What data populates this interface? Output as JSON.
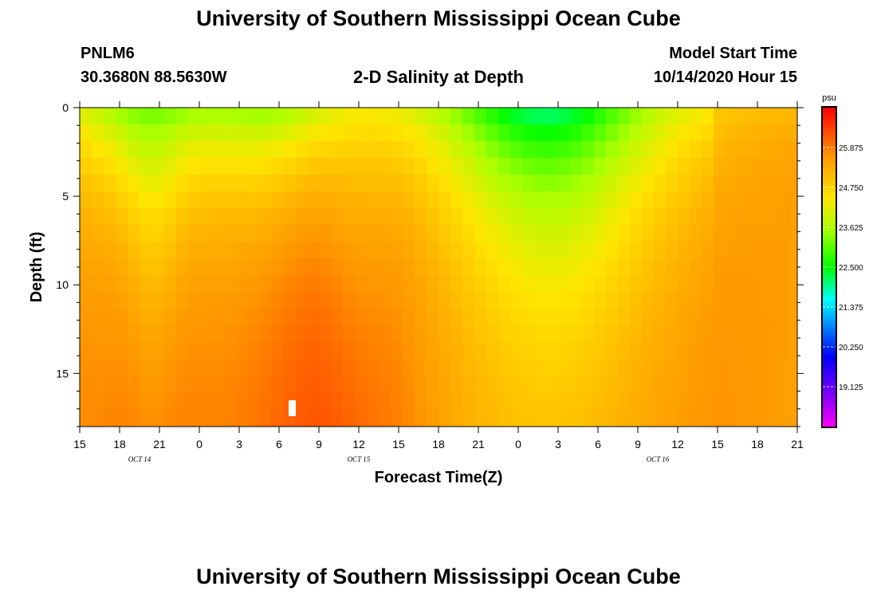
{
  "page": {
    "title_top": "University of Southern Mississippi Ocean Cube",
    "title_bottom": "University of Southern Mississippi Ocean Cube",
    "station_id": "PNLM6",
    "station_coords": "30.3680N 88.5630W",
    "plot_title": "2-D Salinity at Depth",
    "model_start_label": "Model Start Time",
    "model_start_value": "10/14/2020 Hour 15"
  },
  "chart_data": {
    "type": "heatmap",
    "title": "2-D Salinity at Depth",
    "xlabel": "Forecast Time(Z)",
    "ylabel": "Depth (ft)",
    "x_ticks": [
      "15",
      "18",
      "21",
      "0",
      "3",
      "6",
      "9",
      "12",
      "15",
      "18",
      "21",
      "0",
      "3",
      "6",
      "9",
      "12",
      "15",
      "18",
      "21"
    ],
    "date_labels": [
      {
        "text": "OCT 14",
        "tick_index": 1.5
      },
      {
        "text": "OCT 15",
        "tick_index": 7
      },
      {
        "text": "OCT 16",
        "tick_index": 14.5
      }
    ],
    "y_ticks": [
      0,
      5,
      10,
      15
    ],
    "ylim": [
      0,
      18
    ],
    "xlim_hours": [
      0,
      54
    ],
    "grid": false,
    "colorbar": {
      "unit": "psu",
      "min": 18.0,
      "max": 27.0,
      "tick_values": [
        19.125,
        20.25,
        21.375,
        22.5,
        23.625,
        24.75,
        25.875
      ],
      "tick_labels": [
        "19.125",
        "20.250",
        "21.375",
        "22.500",
        "23.625",
        "24.750",
        "25.875"
      ]
    }
  }
}
